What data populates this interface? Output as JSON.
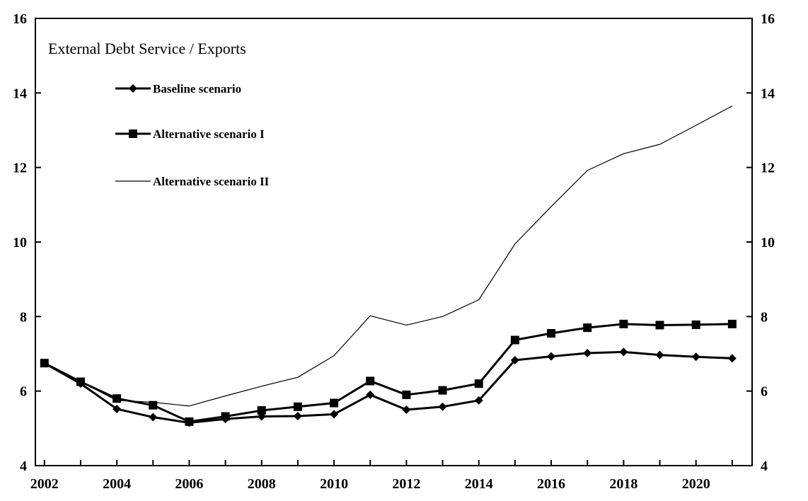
{
  "chart_data": {
    "type": "line",
    "title": "External Debt Service / Exports",
    "xlabel": "",
    "ylabel": "",
    "x": [
      2002,
      2003,
      2004,
      2005,
      2006,
      2007,
      2008,
      2009,
      2010,
      2011,
      2012,
      2013,
      2014,
      2015,
      2016,
      2017,
      2018,
      2019,
      2020,
      2021
    ],
    "x_tick_labels": [
      "2002",
      "2004",
      "2006",
      "2008",
      "2010",
      "2012",
      "2014",
      "2016",
      "2018",
      "2020"
    ],
    "y_tick_labels": [
      "4",
      "6",
      "8",
      "10",
      "12",
      "14",
      "16"
    ],
    "xlim": [
      2002,
      2021
    ],
    "ylim": [
      4,
      16
    ],
    "grid": false,
    "legend_position": "top-left",
    "series": [
      {
        "name": "Baseline scenario",
        "marker": "diamond",
        "line": "thick",
        "color": "#000000",
        "values": [
          6.75,
          6.2,
          5.52,
          5.3,
          5.15,
          5.25,
          5.32,
          5.33,
          5.38,
          5.9,
          5.5,
          5.58,
          5.75,
          6.83,
          6.93,
          7.02,
          7.05,
          6.97,
          6.92,
          6.88
        ]
      },
      {
        "name": "Alternative scenario I",
        "marker": "square",
        "line": "thick",
        "color": "#000000",
        "values": [
          6.75,
          6.25,
          5.8,
          5.62,
          5.18,
          5.32,
          5.48,
          5.58,
          5.68,
          6.27,
          5.9,
          6.02,
          6.2,
          7.37,
          7.55,
          7.7,
          7.8,
          7.77,
          7.78,
          7.8
        ]
      },
      {
        "name": "Alternative scenario II",
        "marker": "none",
        "line": "thin",
        "color": "#000000",
        "values": [
          6.75,
          6.25,
          5.75,
          5.7,
          5.6,
          5.87,
          6.13,
          6.37,
          6.95,
          8.02,
          7.77,
          8.0,
          8.45,
          9.95,
          10.95,
          11.92,
          12.37,
          12.62,
          13.13,
          13.65
        ]
      }
    ]
  }
}
